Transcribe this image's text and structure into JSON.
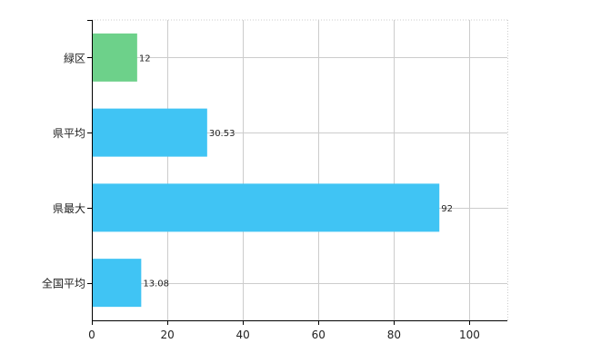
{
  "chart_data": {
    "type": "bar",
    "orientation": "horizontal",
    "title": "",
    "xlabel": "",
    "ylabel": "",
    "categories": [
      "緑区",
      "県平均",
      "県最大",
      "全国平均"
    ],
    "values": [
      12,
      30.53,
      92,
      13.08
    ],
    "value_labels": [
      "12",
      "30.53",
      "92",
      "13.08"
    ],
    "bar_colors": [
      "#6dd18a",
      "#40c4f4",
      "#40c4f4",
      "#40c4f4"
    ],
    "xlim": [
      0,
      110
    ],
    "x_ticks": [
      0,
      20,
      40,
      60,
      80,
      100
    ],
    "x_tick_labels": [
      "0",
      "20",
      "40",
      "60",
      "80",
      "100"
    ],
    "grid": true,
    "legend": "none"
  }
}
